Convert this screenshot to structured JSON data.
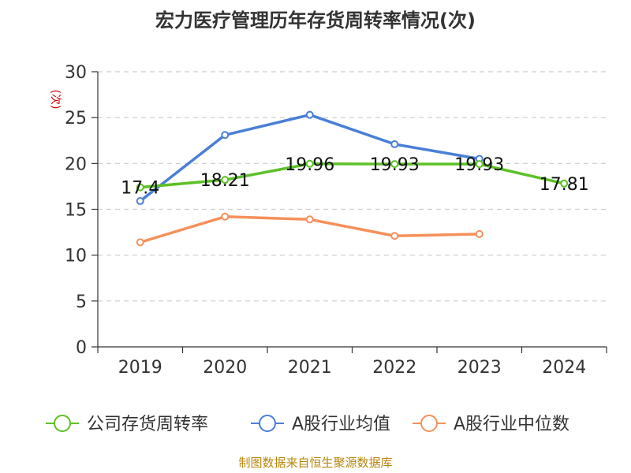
{
  "chart_data": {
    "type": "line",
    "title": "宏力医疗管理历年存货周转率情况(次)",
    "ylabel": "(次)",
    "xlabel": "",
    "categories": [
      "2019",
      "2020",
      "2021",
      "2022",
      "2023",
      "2024"
    ],
    "ylim": [
      0,
      30
    ],
    "yticks": [
      0,
      5,
      10,
      15,
      20,
      25,
      30
    ],
    "grid": true,
    "legend_position": "bottom",
    "series": [
      {
        "name": "公司存货周转率",
        "color": "#5cc126",
        "values": [
          17.4,
          18.21,
          19.96,
          19.93,
          19.93,
          17.81
        ],
        "data_labels": [
          "17.4",
          "18.21",
          "19.96",
          "19.93",
          "19.93",
          "17.81"
        ]
      },
      {
        "name": "A股行业均值",
        "color": "#4a7fd6",
        "values": [
          15.9,
          23.1,
          25.3,
          22.1,
          20.5,
          null
        ]
      },
      {
        "name": "A股行业中位数",
        "color": "#f5905a",
        "values": [
          11.4,
          14.2,
          13.9,
          12.1,
          12.3,
          null
        ]
      }
    ],
    "source": "制图数据来自恒生聚源数据库"
  }
}
